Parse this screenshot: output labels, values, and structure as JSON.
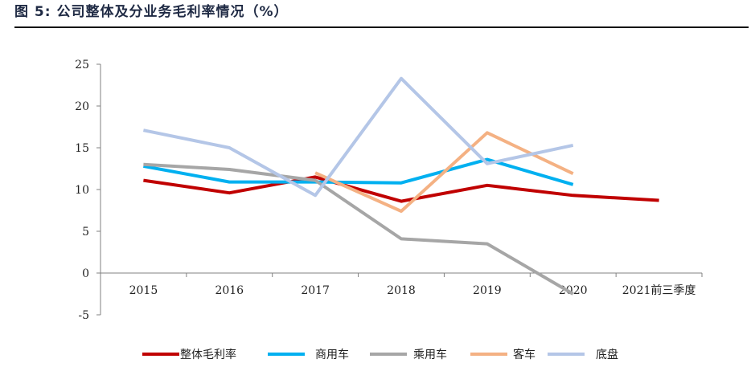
{
  "header": {
    "title": "图 5: 公司整体及分业务毛利率情况（%）"
  },
  "chart_data": {
    "type": "line",
    "title": "",
    "xlabel": "",
    "ylabel": "",
    "categories": [
      "2015",
      "2016",
      "2017",
      "2018",
      "2019",
      "2020",
      "2021前三季度"
    ],
    "ylim": [
      -5,
      25
    ],
    "yticks": [
      -5,
      0,
      5,
      10,
      15,
      20,
      25
    ],
    "grid": false,
    "legend_position": "bottom",
    "series": [
      {
        "name": "整体毛利率",
        "color": "#c00000",
        "values": [
          11.1,
          9.6,
          11.5,
          8.6,
          10.5,
          9.3,
          8.7
        ]
      },
      {
        "name": "商用车",
        "color": "#00b0f0",
        "values": [
          12.8,
          10.9,
          10.9,
          10.8,
          13.6,
          10.6,
          null
        ]
      },
      {
        "name": "乘用车",
        "color": "#a6a6a6",
        "values": [
          13.0,
          12.4,
          11.1,
          4.1,
          3.5,
          -2.5,
          null
        ]
      },
      {
        "name": "客车",
        "color": "#f4b183",
        "values": [
          null,
          null,
          12.0,
          7.4,
          16.8,
          11.9,
          null
        ]
      },
      {
        "name": "底盘",
        "color": "#b4c6e7",
        "values": [
          17.1,
          15.0,
          9.3,
          23.3,
          13.1,
          15.3,
          null
        ]
      }
    ]
  }
}
